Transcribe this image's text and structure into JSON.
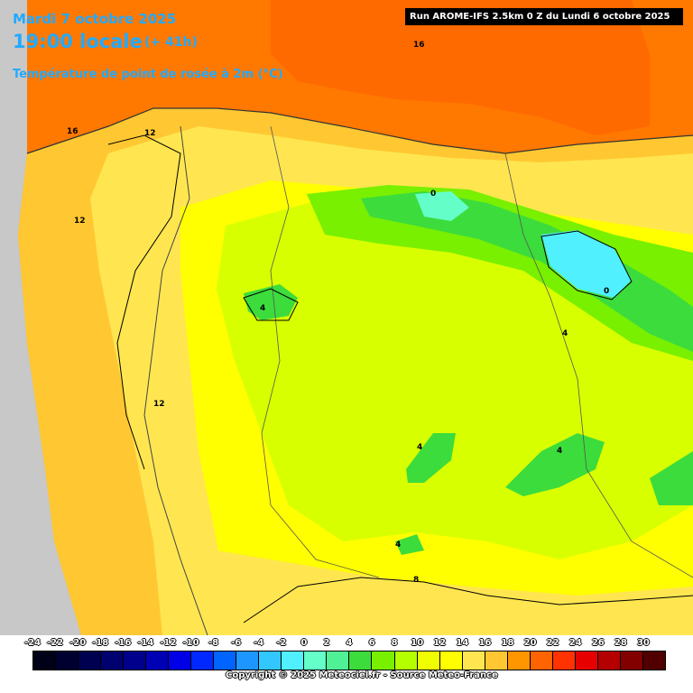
{
  "header": {
    "date": "Mardi 7 octobre 2025",
    "time": "19:00 locale",
    "lead": "(+ 41h)",
    "parameter": "Température de point de rosée à 2m (°C)",
    "run": "Run AROME-IFS 2.5km 0 Z du Lundi 6 octobre 2025"
  },
  "contour_labels": [
    "16",
    "16",
    "12",
    "12",
    "12",
    "0",
    "0",
    "4",
    "4",
    "4",
    "4",
    "4",
    "8"
  ],
  "legend": {
    "ticks": [
      "-24",
      "-22",
      "-20",
      "-18",
      "-16",
      "-14",
      "-12",
      "-10",
      "-8",
      "-6",
      "-4",
      "-2",
      "0",
      "2",
      "4",
      "6",
      "8",
      "10",
      "12",
      "14",
      "16",
      "18",
      "20",
      "22",
      "24",
      "26",
      "28",
      "30"
    ],
    "colors": [
      "#000018",
      "#000030",
      "#000050",
      "#00006e",
      "#00008c",
      "#0000b4",
      "#0000e6",
      "#0028ff",
      "#0064ff",
      "#1e96ff",
      "#32c8ff",
      "#50f0ff",
      "#64ffc8",
      "#50f096",
      "#3cdc3c",
      "#78f000",
      "#b4ff00",
      "#f0ff00",
      "#ffff00",
      "#ffe650",
      "#ffc832",
      "#ff9600",
      "#ff6400",
      "#ff3200",
      "#e60000",
      "#b40000",
      "#820000",
      "#500000"
    ]
  },
  "copyright": "Copyright © 2025 Meteociel.fr - Source Meteo-France"
}
